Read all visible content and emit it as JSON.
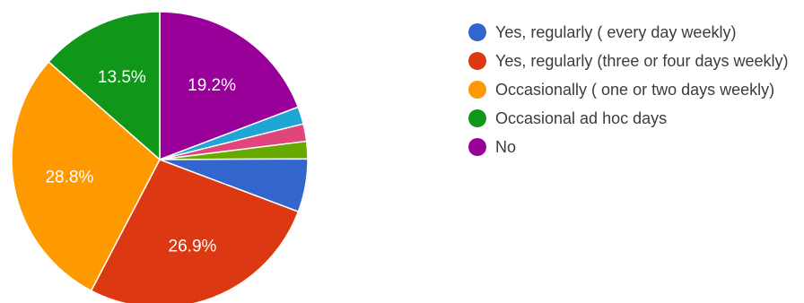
{
  "chart_data": {
    "type": "pie",
    "start": "top",
    "direction": "clockwise",
    "slices": [
      {
        "label": "No",
        "value": 19.2,
        "display": "19.2%",
        "color": "#990099"
      },
      {
        "label": "",
        "value": 1.9,
        "display": "",
        "color": "#1ea7d4"
      },
      {
        "label": "",
        "value": 1.9,
        "display": "",
        "color": "#e0457b"
      },
      {
        "label": "",
        "value": 1.9,
        "display": "",
        "color": "#66aa00"
      },
      {
        "label": "Yes, regularly ( every day weekly)",
        "value": 5.8,
        "display": "",
        "color": "#3366cc"
      },
      {
        "label": "Yes, regularly (three or four days weekly)",
        "value": 26.9,
        "display": "26.9%",
        "color": "#dc3912"
      },
      {
        "label": "Occasionally ( one or two days weekly)",
        "value": 28.8,
        "display": "28.8%",
        "color": "#ff9900"
      },
      {
        "label": "Occasional ad hoc days",
        "value": 13.5,
        "display": "13.5%",
        "color": "#109618"
      }
    ],
    "legend": [
      {
        "label": "Yes, regularly ( every day weekly)",
        "color": "#3366cc"
      },
      {
        "label": "Yes, regularly (three or four days weekly)",
        "color": "#dc3912"
      },
      {
        "label": "Occasionally ( one or two days weekly)",
        "color": "#ff9900"
      },
      {
        "label": "Occasional ad hoc days",
        "color": "#109618"
      },
      {
        "label": "No",
        "color": "#990099"
      }
    ],
    "legend_position": "right"
  }
}
